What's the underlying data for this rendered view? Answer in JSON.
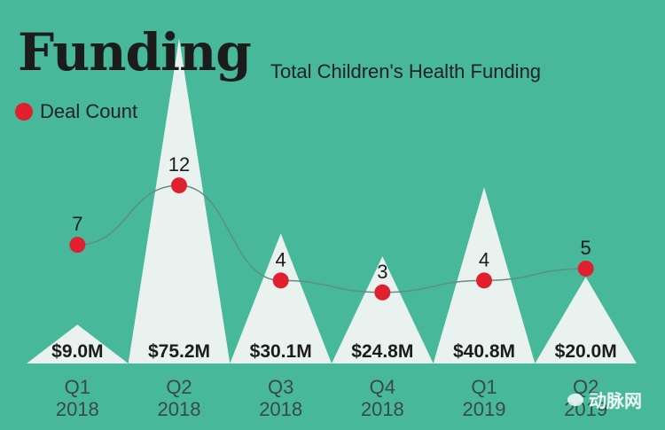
{
  "header": {
    "title": "Funding",
    "subtitle": "Total Children's Health Funding"
  },
  "legend": {
    "label": "Deal Count"
  },
  "watermark": {
    "text": "动脉网"
  },
  "colors": {
    "background": "#47b89a",
    "peak_fill": "#e9f2ef",
    "dot": "#e0202f",
    "line": "#5e9080",
    "text": "#1c1c1c"
  },
  "chart_data": {
    "type": "area",
    "title": "Total Children's Health Funding",
    "categories": [
      "Q1\n2018",
      "Q2\n2018",
      "Q3\n2018",
      "Q4\n2018",
      "Q1\n2019",
      "Q2\n2019"
    ],
    "category_lines": [
      [
        "Q1",
        "2018"
      ],
      [
        "Q2",
        "2018"
      ],
      [
        "Q3",
        "2018"
      ],
      [
        "Q4",
        "2018"
      ],
      [
        "Q1",
        "2019"
      ],
      [
        "Q2",
        "2019"
      ]
    ],
    "series": [
      {
        "name": "Total Children's Health Funding",
        "unit": "$M",
        "values": [
          9.0,
          75.2,
          30.1,
          24.8,
          40.8,
          20.0
        ],
        "labels": [
          "$9.0M",
          "$75.2M",
          "$30.1M",
          "$24.8M",
          "$40.8M",
          "$20.0M"
        ]
      },
      {
        "name": "Deal Count",
        "type": "line",
        "values": [
          7,
          12,
          4,
          3,
          4,
          5
        ],
        "labels": [
          "7",
          "12",
          "4",
          "3",
          "4",
          "5"
        ]
      }
    ],
    "funding_ylim": [
      0,
      80
    ],
    "count_ylim": [
      0,
      22
    ],
    "grid": false,
    "legend_position": "top-left"
  }
}
